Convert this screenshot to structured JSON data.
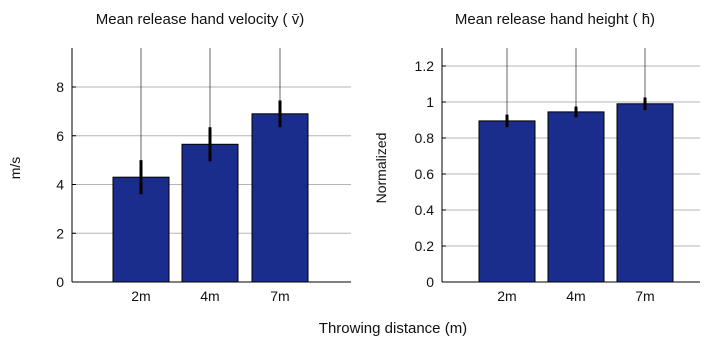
{
  "figure": {
    "xlabel": "Throwing distance (m)"
  },
  "chart_data": [
    {
      "type": "bar",
      "title": "Mean release hand velocity ( v̄)",
      "ylabel": "m/s",
      "categories": [
        "2m",
        "4m",
        "7m"
      ],
      "values": [
        4.3,
        5.65,
        6.9
      ],
      "error": [
        0.7,
        0.7,
        0.55
      ],
      "ylim": [
        0,
        9.6
      ],
      "yticks": [
        0,
        2,
        4,
        6,
        8
      ],
      "grid": true,
      "bar_color": "#1a2d8c"
    },
    {
      "type": "bar",
      "title": "Mean release hand height ( h̄)",
      "ylabel": "Normalized",
      "categories": [
        "2m",
        "4m",
        "7m"
      ],
      "values": [
        0.895,
        0.945,
        0.99
      ],
      "error": [
        0.035,
        0.03,
        0.035
      ],
      "ylim": [
        0,
        1.3
      ],
      "yticks": [
        0,
        0.2,
        0.4,
        0.6,
        0.8,
        1,
        1.2
      ],
      "ytick_labels": [
        "0",
        "0.2",
        "0.4",
        "0.6",
        "0.8",
        "1",
        "1.2"
      ],
      "grid": true,
      "bar_color": "#1a2d8c"
    }
  ]
}
